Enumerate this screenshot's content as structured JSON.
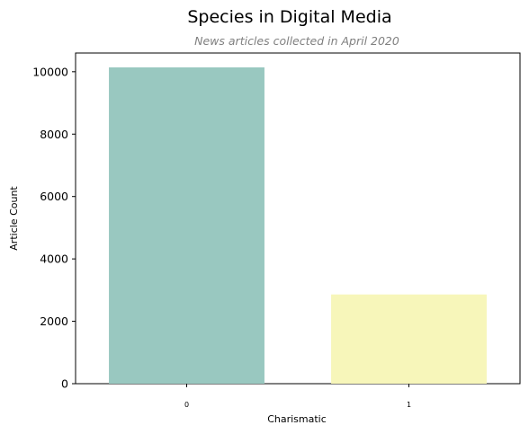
{
  "chart_data": {
    "type": "bar",
    "title": "Species in Digital Media",
    "subtitle": "News articles collected in April 2020",
    "xlabel": "Charismatic",
    "ylabel": "Article Count",
    "categories": [
      "0",
      "1"
    ],
    "values": [
      10140,
      2860
    ],
    "colors": [
      "#99c8c0",
      "#f7f6ba"
    ],
    "ylim": [
      0,
      10600
    ],
    "yticks": [
      0,
      2000,
      4000,
      6000,
      8000,
      10000
    ],
    "grid": false,
    "legend": "none"
  }
}
